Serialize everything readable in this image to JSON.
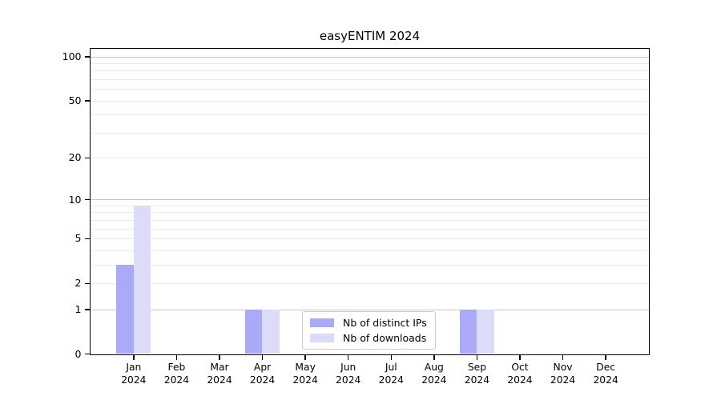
{
  "title": "easyENTIM 2024",
  "chart_data": {
    "type": "bar",
    "title": "easyENTIM 2024",
    "categories": [
      "Jan",
      "Feb",
      "Mar",
      "Apr",
      "May",
      "Jun",
      "Jul",
      "Aug",
      "Sep",
      "Oct",
      "Nov",
      "Dec"
    ],
    "category_year": "2024",
    "series": [
      {
        "name": "Nb of distinct IPs",
        "color": "#aaaaf8",
        "values": [
          3,
          0,
          0,
          1,
          0,
          0,
          0,
          0,
          1,
          0,
          0,
          0
        ]
      },
      {
        "name": "Nb of downloads",
        "color": "#dcdcf8",
        "values": [
          9,
          0,
          0,
          1,
          0,
          0,
          0,
          0,
          1,
          0,
          0,
          0
        ]
      }
    ],
    "xlabel": "",
    "ylabel": "",
    "yscale": "log1p",
    "ylim": [
      0,
      100
    ],
    "yticks": [
      0,
      1,
      2,
      5,
      10,
      20,
      50,
      100
    ],
    "grid_major": [
      1,
      10,
      100
    ],
    "grid_minor": [
      2,
      3,
      4,
      5,
      6,
      7,
      8,
      9,
      20,
      30,
      40,
      50,
      60,
      70,
      80,
      90
    ],
    "grid_on": true,
    "legend_position": "inside-bottom-center",
    "colors": {
      "grid_major": "#c6c6c6",
      "grid_minor": "#ebebeb",
      "axis": "#000000",
      "background": "#ffffff"
    }
  }
}
